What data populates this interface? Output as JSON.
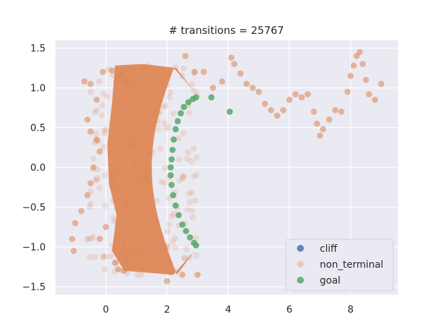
{
  "chart_data": {
    "type": "scatter",
    "title": "# transitions = 25767",
    "xlabel": "",
    "ylabel": "",
    "xlim": [
      -1.65,
      9.55
    ],
    "ylim": [
      -1.6,
      1.6
    ],
    "xticks": [
      0,
      2,
      4,
      6,
      8
    ],
    "yticks": [
      -1.5,
      -1.0,
      -0.5,
      0.0,
      0.5,
      1.0,
      1.5
    ],
    "xtick_labels": [
      "0",
      "2",
      "4",
      "6",
      "8"
    ],
    "ytick_labels": [
      "−1.5",
      "−1.0",
      "−0.5",
      "0.0",
      "0.5",
      "1.0",
      "1.5"
    ],
    "grid": true,
    "legend_position": "lower-right",
    "colors": {
      "background": "#eaeaf2",
      "grid": "#ffffff",
      "cliff": "#4c72b0",
      "non_terminal": "#dd8452",
      "goal": "#55a868"
    },
    "series": [
      {
        "name": "cliff",
        "color": "#4c72b0",
        "points": []
      },
      {
        "name": "non_terminal",
        "color": "#dd8452",
        "alpha": 0.25,
        "points": [
          [
            -0.7,
            1.08
          ],
          [
            -0.5,
            1.05
          ],
          [
            -0.1,
            1.2
          ],
          [
            0.2,
            1.22
          ],
          [
            0.5,
            1.15
          ],
          [
            0.7,
            1.1
          ],
          [
            -0.3,
            0.85
          ],
          [
            -0.6,
            0.6
          ],
          [
            -0.5,
            0.45
          ],
          [
            -0.3,
            0.35
          ],
          [
            -0.2,
            0.2
          ],
          [
            -0.4,
            0.0
          ],
          [
            -0.5,
            -0.2
          ],
          [
            -0.6,
            -0.35
          ],
          [
            -0.8,
            -0.55
          ],
          [
            -1.0,
            -0.7
          ],
          [
            -1.1,
            -0.9
          ],
          [
            -1.05,
            -1.05
          ],
          [
            -0.2,
            -0.9
          ],
          [
            0.0,
            -0.75
          ],
          [
            0.3,
            -1.2
          ],
          [
            0.4,
            -1.28
          ],
          [
            0.6,
            -1.3
          ],
          [
            2.0,
            -1.43
          ],
          [
            2.5,
            -1.35
          ],
          [
            3.0,
            -1.35
          ],
          [
            2.9,
            1.2
          ],
          [
            2.6,
            1.4
          ],
          [
            3.2,
            1.2
          ],
          [
            3.5,
            1.0
          ],
          [
            3.8,
            1.08
          ],
          [
            4.1,
            1.38
          ],
          [
            4.2,
            1.3
          ],
          [
            4.4,
            1.18
          ],
          [
            4.6,
            1.05
          ],
          [
            4.8,
            1.0
          ],
          [
            5.0,
            0.95
          ],
          [
            5.2,
            0.8
          ],
          [
            5.4,
            0.72
          ],
          [
            5.6,
            0.65
          ],
          [
            5.8,
            0.72
          ],
          [
            6.0,
            0.85
          ],
          [
            6.2,
            0.92
          ],
          [
            6.4,
            0.88
          ],
          [
            6.6,
            0.92
          ],
          [
            6.8,
            0.7
          ],
          [
            6.9,
            0.55
          ],
          [
            7.0,
            0.4
          ],
          [
            7.1,
            0.48
          ],
          [
            7.3,
            0.6
          ],
          [
            7.5,
            0.72
          ],
          [
            7.7,
            0.7
          ],
          [
            7.9,
            0.95
          ],
          [
            8.0,
            1.15
          ],
          [
            8.1,
            1.28
          ],
          [
            8.2,
            1.4
          ],
          [
            8.3,
            1.45
          ],
          [
            8.4,
            1.3
          ],
          [
            8.5,
            1.1
          ],
          [
            8.6,
            0.92
          ],
          [
            8.8,
            0.85
          ],
          [
            9.0,
            1.05
          ]
        ]
      },
      {
        "name": "goal",
        "color": "#55a868",
        "points": [
          [
            2.95,
            0.88
          ],
          [
            2.85,
            0.86
          ],
          [
            2.7,
            0.82
          ],
          [
            2.55,
            0.76
          ],
          [
            2.45,
            0.68
          ],
          [
            2.35,
            0.58
          ],
          [
            2.28,
            0.48
          ],
          [
            2.22,
            0.35
          ],
          [
            2.18,
            0.22
          ],
          [
            2.15,
            0.1
          ],
          [
            2.12,
            0.0
          ],
          [
            2.12,
            -0.1
          ],
          [
            2.15,
            -0.22
          ],
          [
            2.2,
            -0.35
          ],
          [
            2.28,
            -0.48
          ],
          [
            2.38,
            -0.6
          ],
          [
            2.5,
            -0.72
          ],
          [
            2.62,
            -0.8
          ],
          [
            2.75,
            -0.88
          ],
          [
            2.88,
            -0.95
          ],
          [
            2.95,
            -0.98
          ],
          [
            3.45,
            0.88
          ],
          [
            4.05,
            0.7
          ]
        ]
      }
    ]
  }
}
